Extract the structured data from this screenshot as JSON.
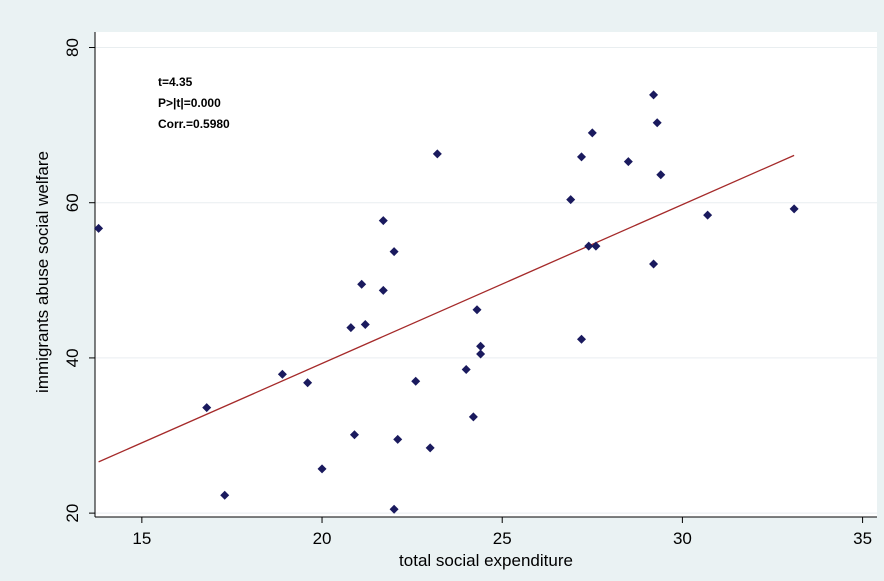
{
  "colors": {
    "outer_background": "#eaf2f3",
    "plot_background": "#ffffff",
    "grid": "#e9eef0",
    "marker": "#1a1a5e",
    "fit_line": "#a52a2a"
  },
  "chart_data": {
    "type": "scatter",
    "title": "",
    "xlabel": "total social expenditure",
    "ylabel": "immigrants abuse social welfare",
    "xlim": [
      13.7,
      35.4
    ],
    "ylim": [
      19.5,
      82
    ],
    "xticks": [
      15,
      20,
      25,
      30,
      35
    ],
    "yticks": [
      20,
      40,
      60,
      80
    ],
    "grid": true,
    "legend": "none",
    "annotations": [
      "t=4.35",
      "P>|t|=0.000",
      "Corr.=0.5980"
    ],
    "points": [
      {
        "x": 13.8,
        "y": 56.7
      },
      {
        "x": 16.8,
        "y": 33.6
      },
      {
        "x": 17.3,
        "y": 22.3
      },
      {
        "x": 18.9,
        "y": 37.9
      },
      {
        "x": 19.6,
        "y": 36.8
      },
      {
        "x": 20.0,
        "y": 25.7
      },
      {
        "x": 20.8,
        "y": 43.9
      },
      {
        "x": 20.9,
        "y": 30.1
      },
      {
        "x": 21.1,
        "y": 49.5
      },
      {
        "x": 21.2,
        "y": 44.3
      },
      {
        "x": 21.7,
        "y": 48.7
      },
      {
        "x": 21.7,
        "y": 57.7
      },
      {
        "x": 22.0,
        "y": 53.7
      },
      {
        "x": 22.0,
        "y": 20.5
      },
      {
        "x": 22.1,
        "y": 29.5
      },
      {
        "x": 22.6,
        "y": 37.0
      },
      {
        "x": 23.0,
        "y": 28.4
      },
      {
        "x": 23.2,
        "y": 66.3
      },
      {
        "x": 24.0,
        "y": 38.5
      },
      {
        "x": 24.2,
        "y": 32.4
      },
      {
        "x": 24.3,
        "y": 46.2
      },
      {
        "x": 24.4,
        "y": 41.5
      },
      {
        "x": 24.4,
        "y": 40.5
      },
      {
        "x": 26.9,
        "y": 60.4
      },
      {
        "x": 27.2,
        "y": 65.9
      },
      {
        "x": 27.2,
        "y": 42.4
      },
      {
        "x": 27.4,
        "y": 54.4
      },
      {
        "x": 27.5,
        "y": 69.0
      },
      {
        "x": 27.6,
        "y": 54.4
      },
      {
        "x": 28.5,
        "y": 65.3
      },
      {
        "x": 29.2,
        "y": 73.9
      },
      {
        "x": 29.2,
        "y": 52.1
      },
      {
        "x": 29.3,
        "y": 70.3
      },
      {
        "x": 29.4,
        "y": 63.6
      },
      {
        "x": 30.7,
        "y": 58.4
      },
      {
        "x": 33.1,
        "y": 59.2
      }
    ],
    "fit_line": {
      "x": [
        13.8,
        33.1
      ],
      "y": [
        26.6,
        66.1
      ]
    }
  }
}
